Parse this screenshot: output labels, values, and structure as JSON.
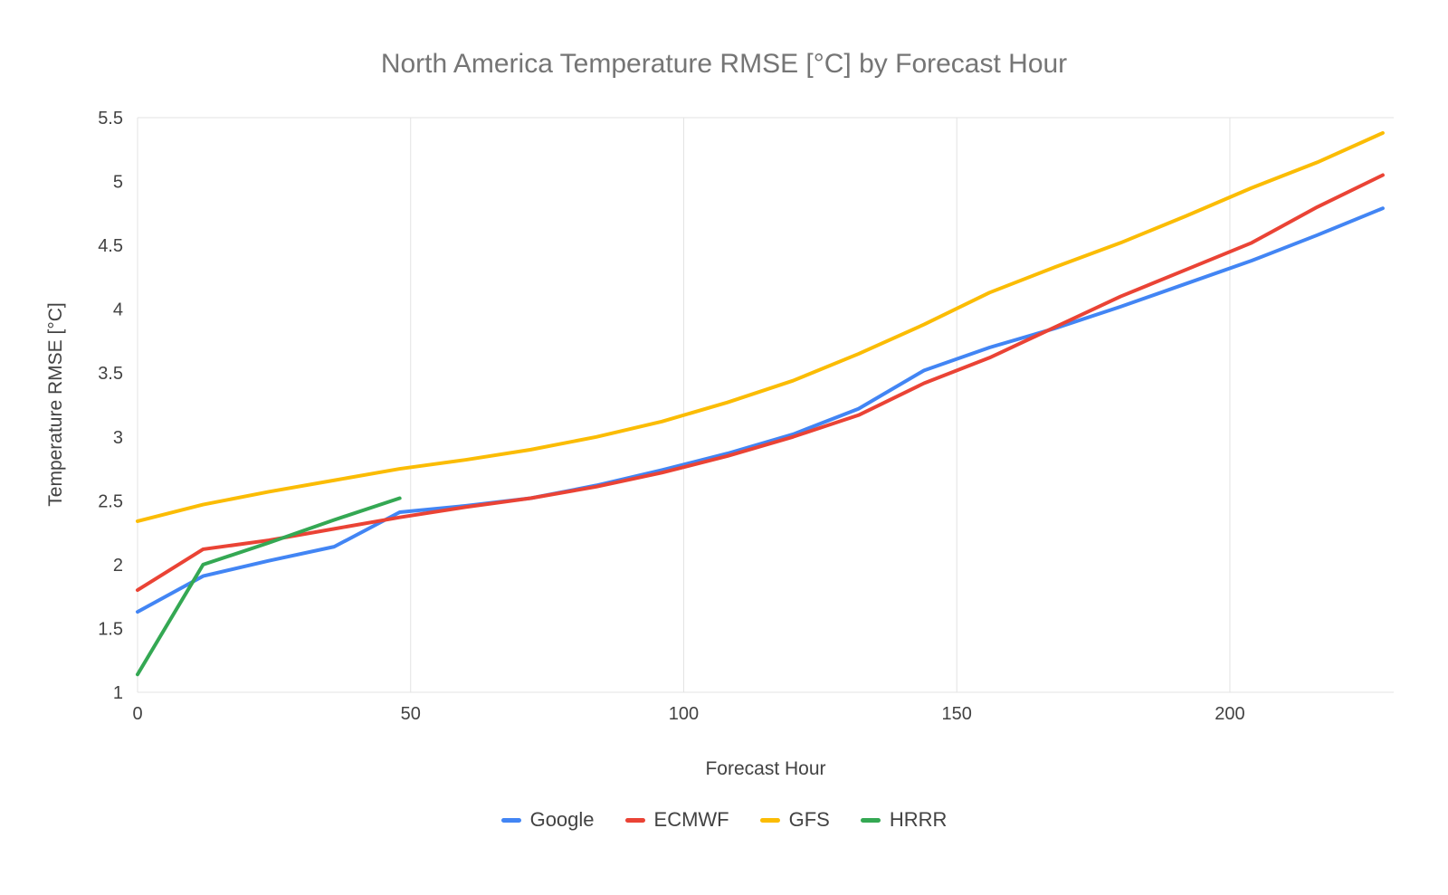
{
  "chart_data": {
    "type": "line",
    "title": "North America Temperature RMSE [°C] by Forecast Hour",
    "xlabel": "Forecast Hour",
    "ylabel": "Temperature RMSE [°C]",
    "xlim": [
      0,
      230
    ],
    "ylim": [
      1,
      5.5
    ],
    "x_ticks": [
      0,
      50,
      100,
      150,
      200
    ],
    "y_ticks": [
      1,
      1.5,
      2,
      2.5,
      3,
      3.5,
      4,
      4.5,
      5,
      5.5
    ],
    "grid": "vertical gridlines at x ticks, horizontal border at top and bottom",
    "legend_position": "bottom",
    "colors": {
      "grid": "#e3e3e3",
      "tick_label": "#424242",
      "title": "#757575",
      "axis_title": "#424242",
      "legend_label": "#424242"
    },
    "series": [
      {
        "name": "Google",
        "color": "#4285F4",
        "x": [
          0,
          12,
          24,
          36,
          48,
          60,
          72,
          84,
          96,
          108,
          120,
          132,
          144,
          156,
          168,
          180,
          192,
          204,
          216,
          228
        ],
        "y": [
          1.63,
          1.91,
          2.03,
          2.14,
          2.41,
          2.46,
          2.52,
          2.62,
          2.74,
          2.87,
          3.02,
          3.22,
          3.52,
          3.7,
          3.85,
          4.02,
          4.2,
          4.38,
          4.58,
          4.79
        ]
      },
      {
        "name": "ECMWF",
        "color": "#EA4335",
        "x": [
          0,
          12,
          24,
          36,
          48,
          60,
          72,
          84,
          96,
          108,
          120,
          132,
          144,
          156,
          168,
          180,
          192,
          204,
          216,
          228
        ],
        "y": [
          1.8,
          2.12,
          2.19,
          2.28,
          2.37,
          2.45,
          2.52,
          2.61,
          2.72,
          2.85,
          3.0,
          3.17,
          3.42,
          3.62,
          3.86,
          4.1,
          4.31,
          4.52,
          4.8,
          5.05
        ]
      },
      {
        "name": "GFS",
        "color": "#FBBC04",
        "x": [
          0,
          12,
          24,
          36,
          48,
          60,
          72,
          84,
          96,
          108,
          120,
          132,
          144,
          156,
          168,
          180,
          192,
          204,
          216,
          228
        ],
        "y": [
          2.34,
          2.47,
          2.57,
          2.66,
          2.75,
          2.82,
          2.9,
          3.0,
          3.12,
          3.27,
          3.44,
          3.65,
          3.88,
          4.13,
          4.33,
          4.52,
          4.73,
          4.95,
          5.15,
          5.38
        ]
      },
      {
        "name": "HRRR",
        "color": "#34A853",
        "x": [
          0,
          12,
          24,
          36,
          48
        ],
        "y": [
          1.14,
          2.0,
          2.17,
          2.35,
          2.52
        ]
      }
    ]
  }
}
